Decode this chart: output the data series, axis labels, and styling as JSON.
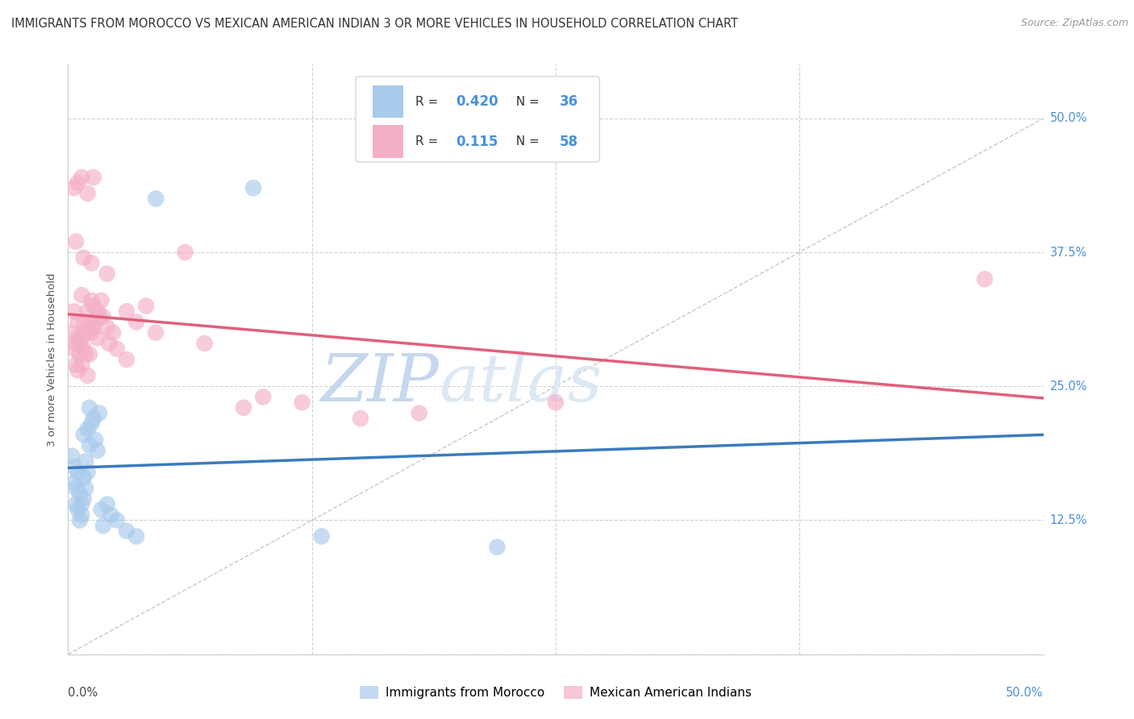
{
  "title": "IMMIGRANTS FROM MOROCCO VS MEXICAN AMERICAN INDIAN 3 OR MORE VEHICLES IN HOUSEHOLD CORRELATION CHART",
  "source": "Source: ZipAtlas.com",
  "ylabel_right": [
    "50.0%",
    "37.5%",
    "25.0%",
    "12.5%"
  ],
  "ylabel_left": "3 or more Vehicles in Household",
  "legend_label1": "Immigrants from Morocco",
  "legend_label2": "Mexican American Indians",
  "R1": "0.420",
  "N1": "36",
  "R2": "0.115",
  "N2": "58",
  "color_blue": "#a8caeb",
  "color_pink": "#f4afc8",
  "color_blue_line": "#3a7bbf",
  "color_pink_line": "#e0607a",
  "color_blue_text": "#4a90d9",
  "watermark_zip_color": "#c5d8ed",
  "watermark_atlas_color": "#dde8f5",
  "blue_points": [
    [
      0.2,
      18.5
    ],
    [
      0.3,
      17.5
    ],
    [
      0.3,
      16.0
    ],
    [
      0.4,
      15.5
    ],
    [
      0.4,
      14.0
    ],
    [
      0.5,
      17.0
    ],
    [
      0.5,
      13.5
    ],
    [
      0.6,
      15.0
    ],
    [
      0.6,
      12.5
    ],
    [
      0.7,
      14.0
    ],
    [
      0.7,
      13.0
    ],
    [
      0.8,
      20.5
    ],
    [
      0.8,
      16.5
    ],
    [
      0.8,
      14.5
    ],
    [
      0.9,
      18.0
    ],
    [
      0.9,
      15.5
    ],
    [
      1.0,
      21.0
    ],
    [
      1.0,
      17.0
    ],
    [
      1.1,
      23.0
    ],
    [
      1.1,
      19.5
    ],
    [
      1.2,
      21.5
    ],
    [
      1.3,
      22.0
    ],
    [
      1.4,
      20.0
    ],
    [
      1.5,
      19.0
    ],
    [
      1.6,
      22.5
    ],
    [
      1.7,
      13.5
    ],
    [
      1.8,
      12.0
    ],
    [
      2.0,
      14.0
    ],
    [
      2.2,
      13.0
    ],
    [
      2.5,
      12.5
    ],
    [
      3.0,
      11.5
    ],
    [
      3.5,
      11.0
    ],
    [
      4.5,
      42.5
    ],
    [
      9.5,
      43.5
    ],
    [
      13.0,
      11.0
    ],
    [
      22.0,
      10.0
    ]
  ],
  "pink_points": [
    [
      0.2,
      30.0
    ],
    [
      0.3,
      32.0
    ],
    [
      0.3,
      28.5
    ],
    [
      0.4,
      29.0
    ],
    [
      0.4,
      27.0
    ],
    [
      0.5,
      31.0
    ],
    [
      0.5,
      29.5
    ],
    [
      0.5,
      26.5
    ],
    [
      0.6,
      29.0
    ],
    [
      0.6,
      28.0
    ],
    [
      0.7,
      33.5
    ],
    [
      0.7,
      29.5
    ],
    [
      0.7,
      27.0
    ],
    [
      0.8,
      31.0
    ],
    [
      0.8,
      28.5
    ],
    [
      0.9,
      30.0
    ],
    [
      0.9,
      28.0
    ],
    [
      1.0,
      32.0
    ],
    [
      1.0,
      26.0
    ],
    [
      1.1,
      30.5
    ],
    [
      1.1,
      28.0
    ],
    [
      1.2,
      33.0
    ],
    [
      1.2,
      30.0
    ],
    [
      1.3,
      32.5
    ],
    [
      1.3,
      30.5
    ],
    [
      1.4,
      31.0
    ],
    [
      1.5,
      32.0
    ],
    [
      1.5,
      29.5
    ],
    [
      1.6,
      31.5
    ],
    [
      1.7,
      33.0
    ],
    [
      1.8,
      31.5
    ],
    [
      2.0,
      30.5
    ],
    [
      2.1,
      29.0
    ],
    [
      2.3,
      30.0
    ],
    [
      2.5,
      28.5
    ],
    [
      3.0,
      32.0
    ],
    [
      3.0,
      27.5
    ],
    [
      3.5,
      31.0
    ],
    [
      4.0,
      32.5
    ],
    [
      4.5,
      30.0
    ],
    [
      0.3,
      43.5
    ],
    [
      0.5,
      44.0
    ],
    [
      0.7,
      44.5
    ],
    [
      1.0,
      43.0
    ],
    [
      1.3,
      44.5
    ],
    [
      0.4,
      38.5
    ],
    [
      0.8,
      37.0
    ],
    [
      1.2,
      36.5
    ],
    [
      2.0,
      35.5
    ],
    [
      6.0,
      37.5
    ],
    [
      7.0,
      29.0
    ],
    [
      9.0,
      23.0
    ],
    [
      10.0,
      24.0
    ],
    [
      12.0,
      23.5
    ],
    [
      15.0,
      22.0
    ],
    [
      18.0,
      22.5
    ],
    [
      25.0,
      23.5
    ],
    [
      47.0,
      35.0
    ]
  ],
  "xlim": [
    0,
    50
  ],
  "ylim": [
    0,
    55
  ],
  "ytick_vals": [
    0,
    12.5,
    25.0,
    37.5,
    50.0
  ],
  "xtick_vals": [
    0,
    12.5,
    25.0,
    37.5,
    50.0
  ],
  "grid_color": "#cccccc",
  "background_color": "#ffffff",
  "title_fontsize": 10.5,
  "source_fontsize": 9
}
